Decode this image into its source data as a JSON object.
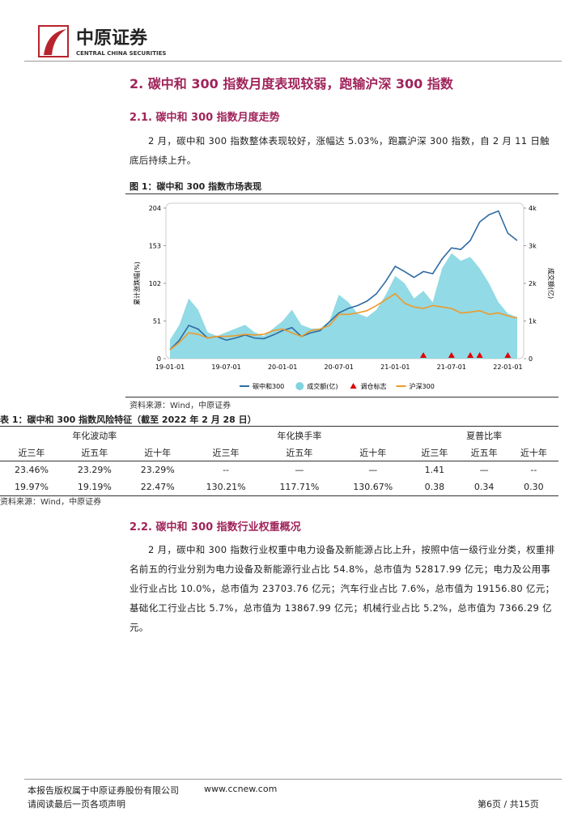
{
  "header": {
    "logo_text": "中原证券",
    "logo_subtext": "CENTRAL CHINA SECURITIES"
  },
  "section": {
    "title": "2. 碳中和 300 指数月度表现较弱，跑输沪深 300 指数"
  },
  "subsection1": {
    "title": "2.1. 碳中和 300 指数月度走势",
    "paragraph": "2 月，碳中和 300 指数整体表现较好，涨幅达 5.03%，跑赢沪深 300 指数，自 2 月 11 日触底后持续上升。"
  },
  "figure1": {
    "caption": "图 1：碳中和 300 指数市场表现",
    "source": "资料来源：Wind，中原证券",
    "chart_data": {
      "type": "line",
      "y_label": "累计涨跌幅(%)",
      "y2_label": "成交额(亿)",
      "categories": [
        "19-01-01",
        null,
        null,
        null,
        null,
        null,
        "19-07-01",
        null,
        null,
        null,
        null,
        null,
        "20-01-01",
        null,
        null,
        null,
        null,
        null,
        "20-07-01",
        null,
        null,
        null,
        null,
        null,
        "21-01-01",
        null,
        null,
        null,
        null,
        null,
        "21-07-01",
        null,
        null,
        null,
        null,
        null,
        "22-01-01",
        null
      ],
      "ylim": [
        0,
        204
      ],
      "yticks": [
        0,
        51,
        102,
        153,
        204
      ],
      "y2lim": [
        0,
        4000
      ],
      "y2ticks": [
        0,
        {
          "value": 1000,
          "label": "1k"
        },
        {
          "value": 2000,
          "label": "2k"
        },
        {
          "value": 3000,
          "label": "3k"
        },
        {
          "value": 4000,
          "label": "4k"
        }
      ],
      "grid": false,
      "legend": "bottom",
      "series": [
        {
          "name": "碳中和300",
          "mark": "line",
          "color": "#2e6ca4",
          "values": [
            12,
            25,
            45,
            40,
            28,
            30,
            25,
            28,
            32,
            28,
            27,
            32,
            38,
            42,
            30,
            35,
            38,
            50,
            62,
            68,
            72,
            78,
            88,
            105,
            125,
            118,
            110,
            118,
            115,
            135,
            150,
            148,
            160,
            185,
            195,
            200,
            170,
            160
          ]
        },
        {
          "name": "成交额(亿)",
          "mark": "area",
          "axis": "y2",
          "color": "#7fd4e0",
          "values": [
            500,
            900,
            1600,
            1300,
            700,
            600,
            700,
            800,
            900,
            700,
            600,
            800,
            1000,
            1300,
            900,
            800,
            800,
            1000,
            1700,
            1500,
            1200,
            1100,
            1300,
            1700,
            2200,
            2000,
            1600,
            1800,
            1500,
            2400,
            2800,
            2600,
            2700,
            2400,
            2000,
            1500,
            1200,
            1100
          ]
        },
        {
          "name": "调仓标志",
          "mark": "triangle",
          "color": "#e00000",
          "values": [
            null,
            null,
            null,
            null,
            null,
            null,
            null,
            null,
            null,
            null,
            null,
            null,
            null,
            null,
            null,
            null,
            null,
            null,
            null,
            null,
            null,
            null,
            null,
            null,
            null,
            null,
            null,
            0,
            null,
            null,
            0,
            null,
            0,
            0,
            null,
            null,
            0,
            null
          ]
        },
        {
          "name": "沪深300",
          "mark": "line",
          "color": "#ed9a2b",
          "values": [
            12,
            22,
            35,
            33,
            28,
            30,
            30,
            31,
            33,
            32,
            33,
            38,
            40,
            35,
            30,
            38,
            40,
            45,
            60,
            60,
            62,
            65,
            72,
            80,
            88,
            75,
            70,
            68,
            72,
            70,
            68,
            62,
            63,
            65,
            60,
            62,
            58,
            55
          ]
        }
      ]
    }
  },
  "table1": {
    "caption": "表 1：碳中和 300 指数风险特征（截至 2022 年 2 月 28 日）",
    "group_headers": [
      "年化波动率",
      "年化换手率",
      "夏普比率"
    ],
    "columns": [
      "近三年",
      "近五年",
      "近十年",
      "近三年",
      "近五年",
      "近十年",
      "近三年",
      "近五年",
      "近十年"
    ],
    "rows": [
      [
        "23.46%",
        "23.29%",
        "23.29%",
        "--",
        "—",
        "—",
        "1.41",
        "—",
        "--"
      ],
      [
        "19.97%",
        "19.19%",
        "22.47%",
        "130.21%",
        "117.71%",
        "130.67%",
        "0.38",
        "0.34",
        "0.30"
      ]
    ],
    "source": "资料来源：Wind，中原证券"
  },
  "subsection2": {
    "title": "2.2. 碳中和 300 指数行业权重概况",
    "paragraph": "2 月，碳中和 300 指数行业权重中电力设备及新能源占比上升，按照中信一级行业分类，权重排名前五的行业分别为电力设备及新能源行业占比 54.8%，总市值为 52817.99 亿元；电力及公用事业行业占比 10.0%，总市值为 23703.76 亿元；汽车行业占比 7.6%，总市值为 19156.80 亿元；基础化工行业占比 5.7%，总市值为 13867.99 亿元；机械行业占比 5.2%，总市值为 7366.29 亿元。"
  },
  "footer": {
    "copyright": "本报告版权属于中原证券股份有限公司",
    "website": "www.ccnew.com",
    "notice": "请阅读最后一页各项声明",
    "page": "第6页 / 共15页"
  }
}
